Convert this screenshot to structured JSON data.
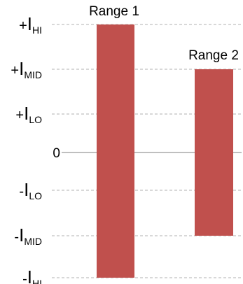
{
  "chart_data": {
    "type": "bar",
    "title": "",
    "xlabel": "",
    "ylabel": "",
    "y_scale": "symbolic levels",
    "y_levels": [
      {
        "key": "IHI",
        "value": 3,
        "sign": "+",
        "main": "I",
        "sub": "HI"
      },
      {
        "key": "IMID",
        "value": 2,
        "sign": "+",
        "main": "I",
        "sub": "MID"
      },
      {
        "key": "ILO",
        "value": 1,
        "sign": "+",
        "main": "I",
        "sub": "LO"
      },
      {
        "key": "ZERO",
        "value": 0,
        "sign": "",
        "main": "0",
        "sub": ""
      },
      {
        "key": "-ILO",
        "value": -1,
        "sign": "-",
        "main": "I",
        "sub": "LO"
      },
      {
        "key": "-IMID",
        "value": -2,
        "sign": "-",
        "main": "I",
        "sub": "MID"
      },
      {
        "key": "-IHI",
        "value": -3,
        "sign": "-",
        "main": "I",
        "sub": "HI"
      }
    ],
    "ylim": [
      -3,
      3
    ],
    "grid": "dashed at level ticks, solid at 0",
    "categories": [
      "Range 1",
      "Range 2"
    ],
    "bars": [
      {
        "label": "Range 1",
        "low": -3,
        "high": 3
      },
      {
        "label": "Range 2",
        "low": -2,
        "high": 2
      }
    ],
    "colors": {
      "bar": "#c0504d",
      "grid": "#c0c0c0",
      "zero_line": "#bfbfbf",
      "text": "#000000"
    }
  }
}
